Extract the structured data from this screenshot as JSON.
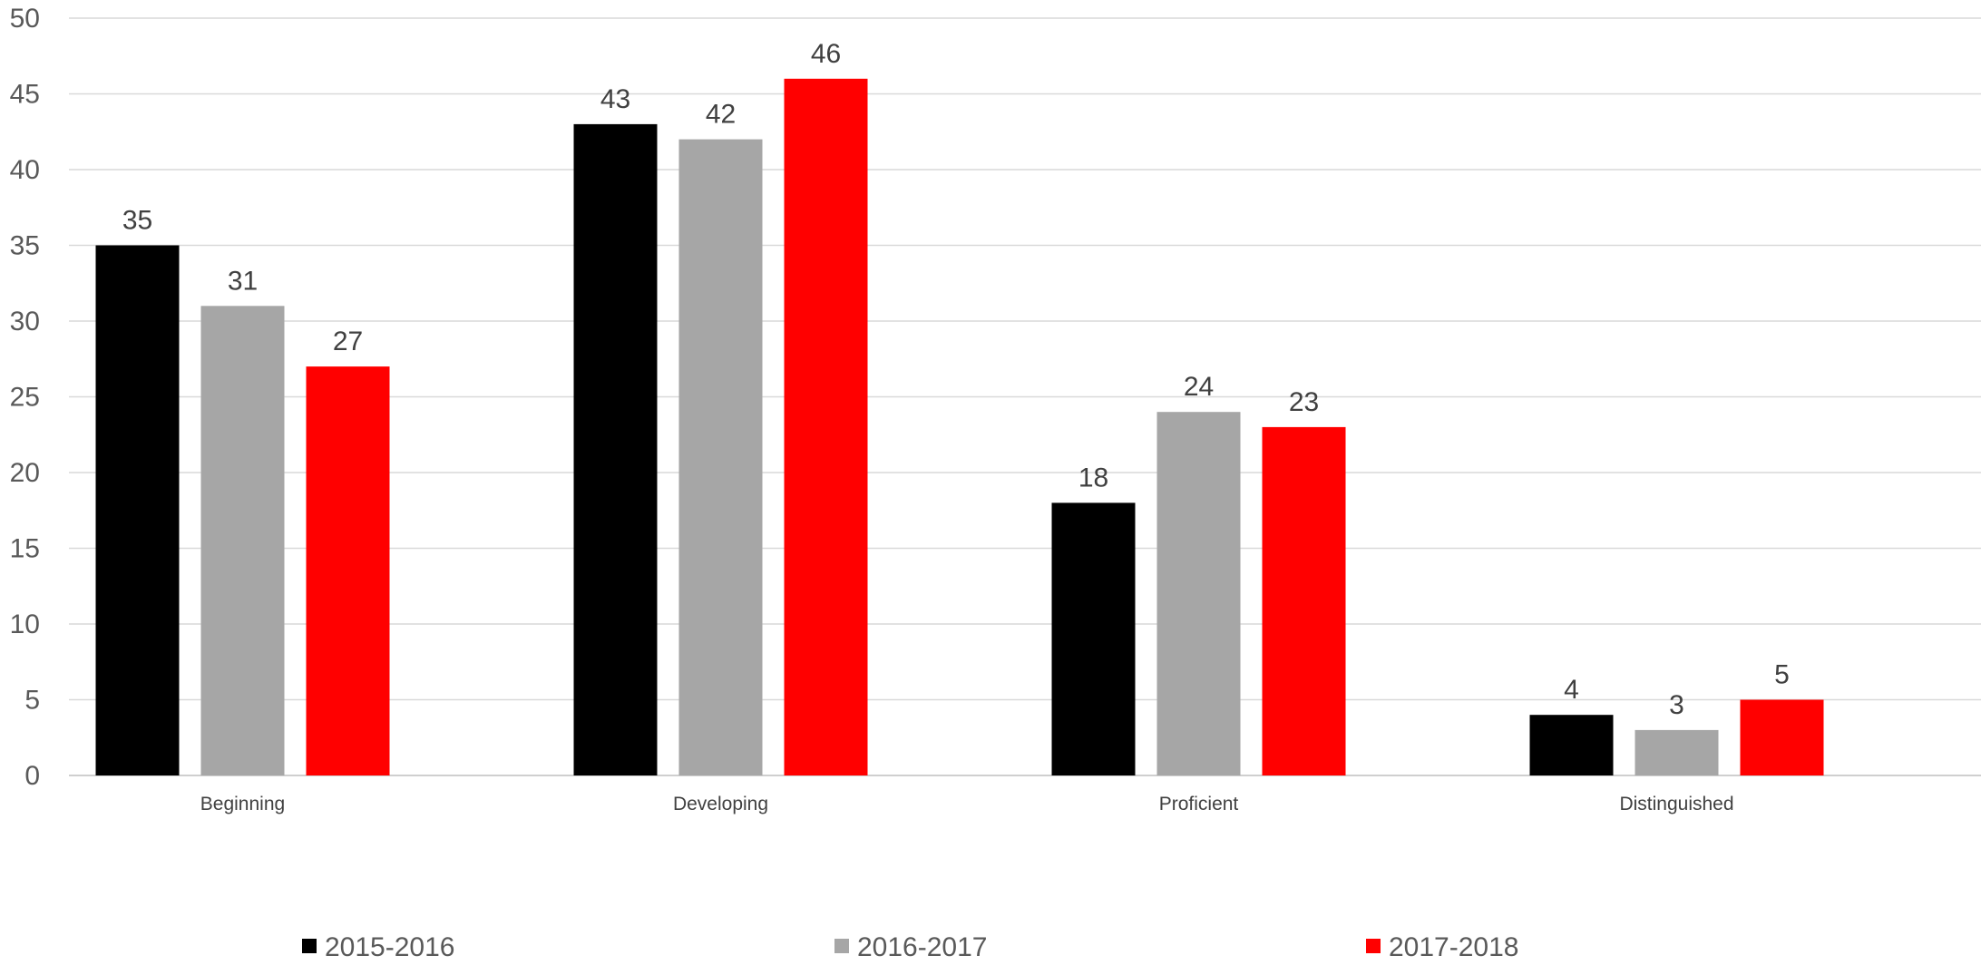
{
  "chart_data": {
    "type": "bar",
    "categories": [
      "Beginning",
      "Developing",
      "Proficient",
      "Distinguished"
    ],
    "series": [
      {
        "name": "2015-2016",
        "color": "#000000",
        "values": [
          35,
          43,
          18,
          4
        ]
      },
      {
        "name": "2016-2017",
        "color": "#a6a6a6",
        "values": [
          31,
          42,
          24,
          3
        ]
      },
      {
        "name": "2017-2018",
        "color": "#ff0000",
        "values": [
          27,
          46,
          23,
          5
        ]
      }
    ],
    "ylim": [
      0,
      50
    ],
    "yticks": [
      0,
      5,
      10,
      15,
      20,
      25,
      30,
      35,
      40,
      45,
      50
    ],
    "title": "",
    "xlabel": "",
    "ylabel": "",
    "grid": true,
    "legend_position": "bottom",
    "data_labels": true
  }
}
